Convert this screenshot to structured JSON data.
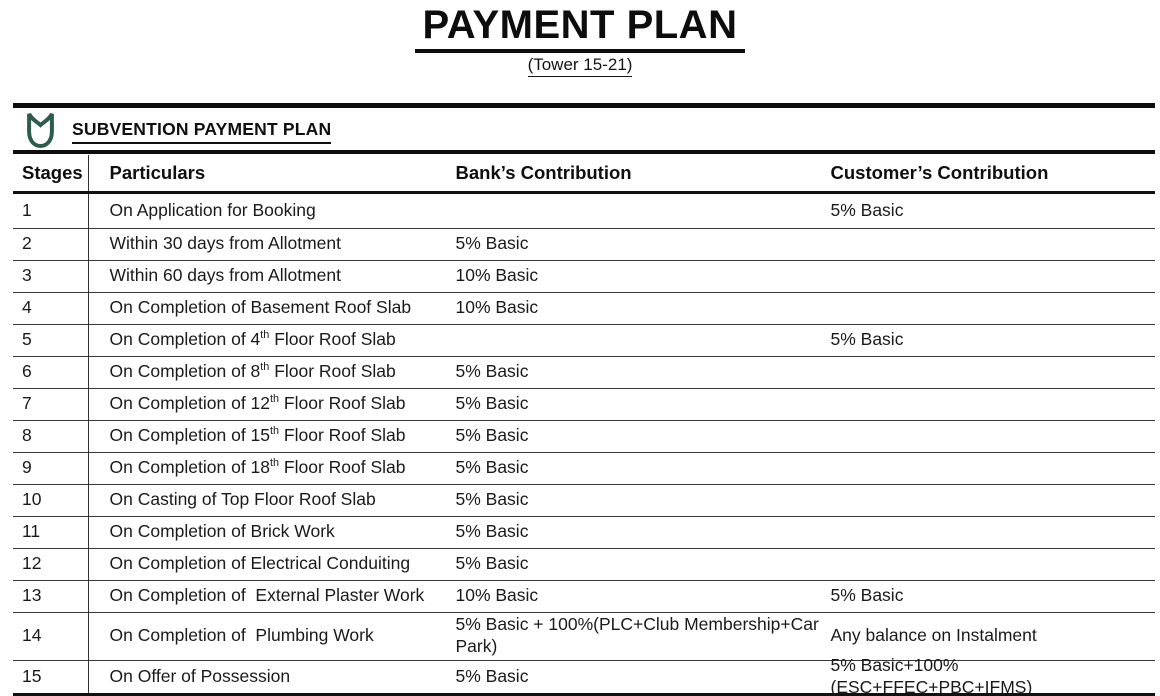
{
  "page": {
    "title": "PAYMENT PLAN",
    "subtitle": "(Tower 15-21)"
  },
  "section": {
    "heading": "SUBVENTION PAYMENT PLAN",
    "icon": "tulip-shield-icon",
    "icon_color": "#2e5c4b"
  },
  "table": {
    "columns": [
      "Stages",
      "Particulars",
      "Bank’s Contribution",
      "Customer’s Contribution"
    ],
    "rows": [
      {
        "stage": "1",
        "particulars": "On Application for Booking",
        "bank": "",
        "customer": "5% Basic"
      },
      {
        "stage": "2",
        "particulars": "Within 30 days from Allotment",
        "bank": "5% Basic",
        "customer": ""
      },
      {
        "stage": "3",
        "particulars": "Within 60 days from Allotment",
        "bank": "10% Basic",
        "customer": ""
      },
      {
        "stage": "4",
        "particulars": "On Completion of Basement Roof Slab",
        "bank": "10% Basic",
        "customer": ""
      },
      {
        "stage": "5",
        "particulars": "On Completion of 4^{th} Floor Roof Slab",
        "bank": "",
        "customer": "5% Basic"
      },
      {
        "stage": "6",
        "particulars": "On Completion of 8^{th} Floor Roof Slab",
        "bank": "5% Basic",
        "customer": ""
      },
      {
        "stage": "7",
        "particulars": "On Completion of 12^{th} Floor Roof Slab",
        "bank": "5% Basic",
        "customer": ""
      },
      {
        "stage": "8",
        "particulars": "On Completion of 15^{th} Floor Roof Slab",
        "bank": "5% Basic",
        "customer": ""
      },
      {
        "stage": "9",
        "particulars": "On Completion of 18^{th} Floor Roof Slab",
        "bank": "5% Basic",
        "customer": ""
      },
      {
        "stage": "10",
        "particulars": "On Casting of Top Floor Roof Slab",
        "bank": "5% Basic",
        "customer": ""
      },
      {
        "stage": "11",
        "particulars": "On Completion of Brick Work",
        "bank": "5% Basic",
        "customer": ""
      },
      {
        "stage": "12",
        "particulars": "On Completion of Electrical Conduiting",
        "bank": "5% Basic",
        "customer": ""
      },
      {
        "stage": "13",
        "particulars": "On Completion of  External Plaster Work",
        "bank": "10% Basic",
        "customer": "5% Basic"
      },
      {
        "stage": "14",
        "particulars": "On Completion of  Plumbing Work",
        "bank": "5% Basic + 100%(PLC+Club Membership+Car Park)",
        "customer": "Any balance on Instalment"
      },
      {
        "stage": "15",
        "particulars": "On Offer of Possession",
        "bank": "5% Basic",
        "customer": "5% Basic+100%(ESC+FFEC+PBC+IFMS)"
      }
    ]
  }
}
